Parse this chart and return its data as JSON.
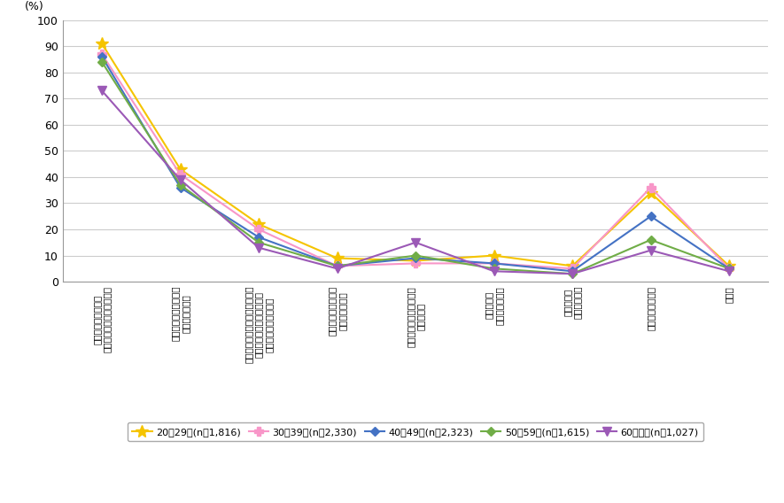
{
  "ylabel": "(%)",
  "ylim": [
    0,
    100
  ],
  "yticks": [
    0,
    10,
    20,
    30,
    40,
    50,
    60,
    70,
    80,
    90,
    100
  ],
  "categories": [
    "従来からの知人との\nコミュニケーションのため",
    "知りたいことについて\n情報を探すため",
    "同じ趣味・嗜好や同じ悩み事・\n相談事を持つ人を探したり\n交流関係を広げるため",
    "自分の情報や作品を\n発表したいから",
    "災害発生時の情報収集・\n発信のため",
    "昧の友人・\n知人を探すため",
    "ストレスを\n解消するため",
    "ひまつぶしのため",
    "その他"
  ],
  "series": [
    {
      "label": "20～29歳(n＝1,816)",
      "color": "#f5c400",
      "marker": "*",
      "markersize": 10,
      "values": [
        91,
        43,
        22,
        9,
        8,
        10,
        6,
        34,
        6
      ]
    },
    {
      "label": "30～39歳(n＝2,330)",
      "color": "#f896c8",
      "marker": "P",
      "markersize": 7,
      "values": [
        87,
        41,
        20,
        6,
        7,
        7,
        5,
        36,
        5
      ]
    },
    {
      "label": "40～49歳(n＝2,323)",
      "color": "#4472c4",
      "marker": "D",
      "markersize": 5,
      "values": [
        86,
        36,
        17,
        6,
        9,
        7,
        4,
        25,
        5
      ]
    },
    {
      "label": "50～59歳(n＝1,615)",
      "color": "#70ad47",
      "marker": "D",
      "markersize": 5,
      "values": [
        84,
        37,
        15,
        6,
        10,
        5,
        3,
        16,
        5
      ]
    },
    {
      "label": "60歳以上(n＝1,027)",
      "color": "#9b59b6",
      "marker": "v",
      "markersize": 7,
      "values": [
        73,
        39,
        13,
        5,
        15,
        4,
        3,
        12,
        4
      ]
    }
  ],
  "background_color": "#ffffff",
  "grid_color": "#cccccc"
}
